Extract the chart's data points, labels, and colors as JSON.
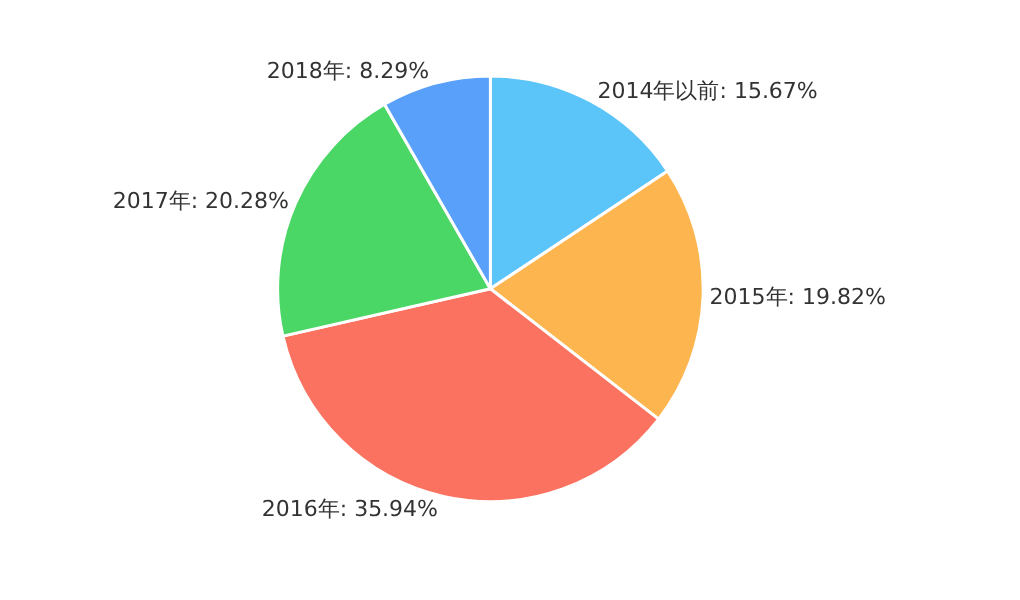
{
  "chart_data": {
    "type": "pie",
    "categories": [
      "2014年以前: 15.67%",
      "2015年: 19.82%",
      "2016年: 35.94%",
      "2017年: 20.28%",
      "2018年: 8.29%"
    ],
    "values": [
      15.67,
      19.82,
      35.94,
      20.28,
      8.29
    ],
    "colors": [
      "#5bc4f8",
      "#fdb54f",
      "#fb7260",
      "#4bd766",
      "#58a0fa"
    ],
    "legend": false
  }
}
